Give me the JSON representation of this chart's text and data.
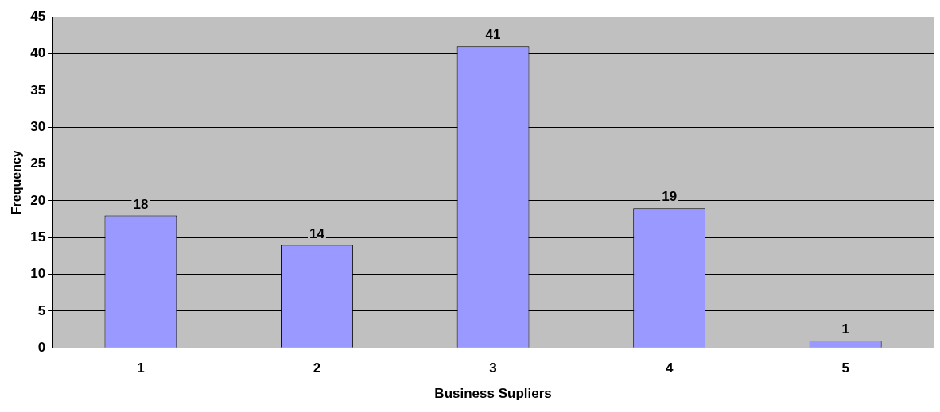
{
  "chart_data": {
    "type": "bar",
    "xlabel": "Business Supliers",
    "ylabel": "Frequency",
    "categories": [
      "1",
      "2",
      "3",
      "4",
      "5"
    ],
    "values": [
      18,
      14,
      41,
      19,
      1
    ],
    "color": "#9999ff",
    "ylim": [
      0,
      45
    ],
    "yticks": [
      0,
      5,
      10,
      15,
      20,
      25,
      30,
      35,
      40,
      45
    ],
    "grid": "y",
    "data_labels": true,
    "legend": false
  }
}
